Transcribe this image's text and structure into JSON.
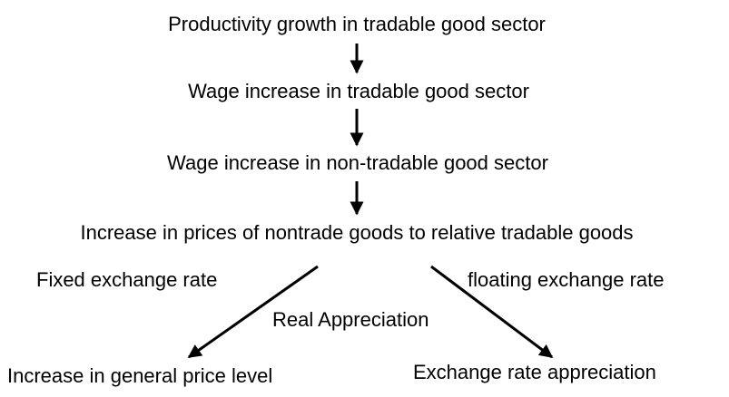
{
  "nodes": [
    {
      "label": "Productivity growth in tradable good sector"
    },
    {
      "label": "Wage increase in tradable good sector"
    },
    {
      "label": "Wage increase in non-tradable good sector"
    },
    {
      "label": "Increase in prices of nontrade goods to relative tradable goods"
    },
    {
      "label": "Increase in general price level"
    },
    {
      "label": "Exchange rate appreciation"
    }
  ],
  "edges": [
    {
      "label": "Fixed exchange rate"
    },
    {
      "label": "floating exchange rate"
    },
    {
      "label": "Real Appreciation"
    }
  ]
}
